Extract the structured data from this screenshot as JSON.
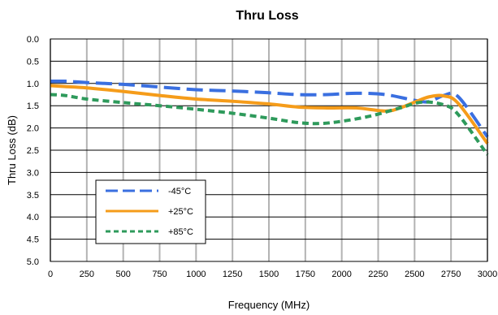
{
  "chart_data": {
    "type": "line",
    "title": "Thru Loss",
    "xlabel": "Frequency (MHz)",
    "ylabel": "Thru Loss (dB)",
    "xlim": [
      0,
      3000
    ],
    "ylim": [
      0,
      5
    ],
    "y_inverted": true,
    "grid": true,
    "legend_position": "lower-left",
    "x_ticks": [
      "0",
      "250",
      "500",
      "750",
      "1000",
      "1250",
      "1500",
      "1750",
      "2000",
      "2250",
      "2500",
      "2750",
      "3000"
    ],
    "y_ticks": [
      "0.0",
      "0.5",
      "1.0",
      "1.5",
      "2.0",
      "2.5",
      "3.0",
      "3.5",
      "4.0",
      "4.5",
      "5.0"
    ],
    "series": [
      {
        "name": "-45°C",
        "color": "#3a6fe0",
        "dash": "long-dash",
        "x": [
          0,
          100,
          250,
          500,
          750,
          1000,
          1250,
          1500,
          1700,
          1900,
          2100,
          2300,
          2500,
          2600,
          2700,
          2800,
          3000
        ],
        "y": [
          0.95,
          0.95,
          0.98,
          1.02,
          1.08,
          1.14,
          1.17,
          1.21,
          1.25,
          1.25,
          1.22,
          1.25,
          1.38,
          1.41,
          1.27,
          1.3,
          2.2
        ]
      },
      {
        "name": "+25°C",
        "color": "#f59c1a",
        "dash": "solid",
        "x": [
          0,
          100,
          250,
          500,
          750,
          1000,
          1250,
          1500,
          1700,
          1900,
          2100,
          2300,
          2400,
          2500,
          2600,
          2700,
          2800,
          3000
        ],
        "y": [
          1.05,
          1.07,
          1.1,
          1.18,
          1.27,
          1.35,
          1.4,
          1.46,
          1.53,
          1.55,
          1.55,
          1.62,
          1.55,
          1.42,
          1.3,
          1.28,
          1.45,
          2.35
        ]
      },
      {
        "name": "+85°C",
        "color": "#2e9a5b",
        "dash": "short-dash",
        "x": [
          0,
          100,
          250,
          500,
          750,
          1000,
          1250,
          1500,
          1700,
          1850,
          2000,
          2200,
          2400,
          2550,
          2700,
          2800,
          3000
        ],
        "y": [
          1.25,
          1.27,
          1.35,
          1.43,
          1.5,
          1.58,
          1.67,
          1.78,
          1.88,
          1.9,
          1.85,
          1.73,
          1.55,
          1.42,
          1.48,
          1.7,
          2.6
        ]
      }
    ]
  }
}
